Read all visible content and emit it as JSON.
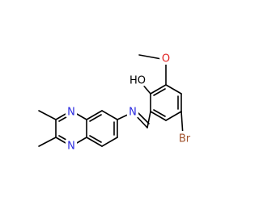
{
  "atoms": [
    "N",
    "N",
    "N",
    "HO",
    "O",
    "Br"
  ]
}
